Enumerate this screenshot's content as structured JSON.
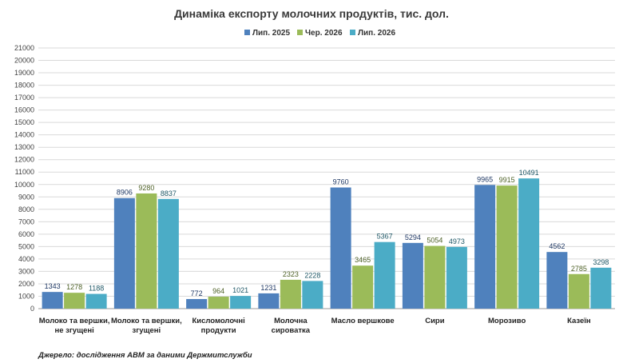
{
  "chart_data": {
    "type": "bar",
    "title": "Динаміка експорту молочних продуктів, тис. дол.",
    "categories": [
      [
        "Молоко  та вершки,",
        "не згущені"
      ],
      [
        "Молоко та вершки,",
        "згущені"
      ],
      [
        "Кисломолочні",
        "продукти"
      ],
      [
        "Молочна",
        "сироватка"
      ],
      [
        "Масло  вершкове"
      ],
      [
        "Сири"
      ],
      [
        "Морозиво"
      ],
      [
        "Казеїн"
      ]
    ],
    "series": [
      {
        "name": "Лип. 2025",
        "color": "#4f81bd",
        "label_color": "#1f3864",
        "values": [
          1343,
          8906,
          772,
          1231,
          9760,
          5294,
          9965,
          4562
        ]
      },
      {
        "name": "Чер. 2026",
        "color": "#9bbb59",
        "label_color": "#4f6228",
        "values": [
          1278,
          9280,
          964,
          2323,
          3465,
          5054,
          9915,
          2785
        ]
      },
      {
        "name": "Лип. 2026",
        "color": "#4bacc6",
        "label_color": "#215968",
        "values": [
          1188,
          8837,
          1021,
          2228,
          5367,
          4973,
          10491,
          3298
        ]
      }
    ],
    "ylim": [
      0,
      21000
    ],
    "ytick_step": 1000,
    "grid": true,
    "legend": "top"
  },
  "source": "Джерело: дослідження  АВМ  за даними  Держмитслужби"
}
